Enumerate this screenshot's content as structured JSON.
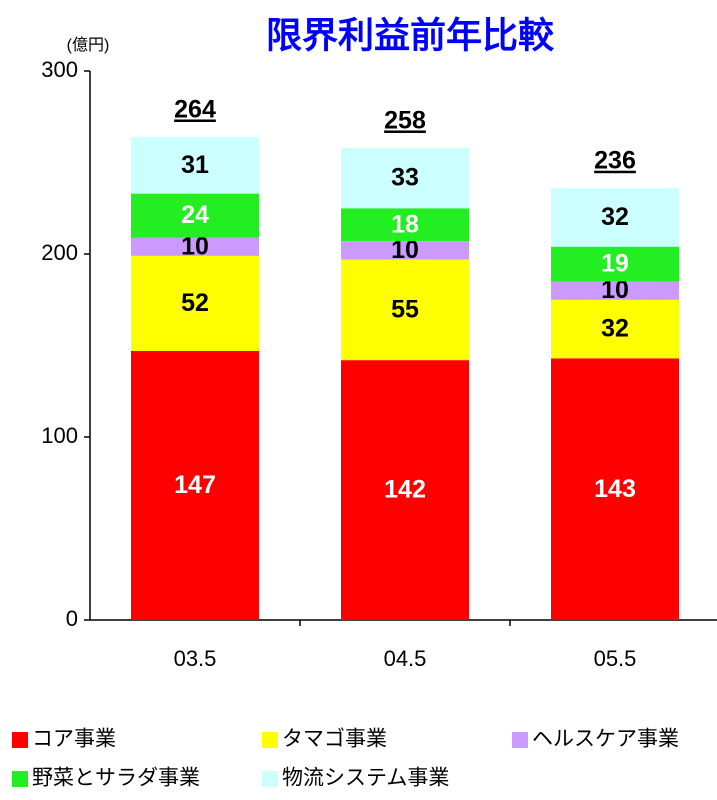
{
  "chart_data": {
    "type": "stacked_bar",
    "title": "限界利益前年比較",
    "y_unit": "(億円)",
    "categories": [
      "03.5",
      "04.5",
      "05.5"
    ],
    "series": [
      {
        "name": "コア事業",
        "color": "#ff0000",
        "label_color": "#ffffff",
        "values": [
          147,
          142,
          143
        ]
      },
      {
        "name": "タマゴ事業",
        "color": "#ffff00",
        "label_color": "#000000",
        "values": [
          52,
          55,
          32
        ]
      },
      {
        "name": "ヘルスケア事業",
        "color": "#cc99ff",
        "label_color": "#000000",
        "values": [
          10,
          10,
          10
        ]
      },
      {
        "name": "野菜とサラダ事業",
        "color": "#22ee22",
        "label_color": "#ffffff",
        "values": [
          24,
          18,
          19
        ]
      },
      {
        "name": "物流システム事業",
        "color": "#ccffff",
        "label_color": "#000000",
        "values": [
          31,
          33,
          32
        ]
      }
    ],
    "totals": [
      264,
      258,
      236
    ],
    "ylim": [
      0,
      300
    ],
    "yticks": [
      0,
      100,
      200,
      300
    ],
    "grid": false
  }
}
